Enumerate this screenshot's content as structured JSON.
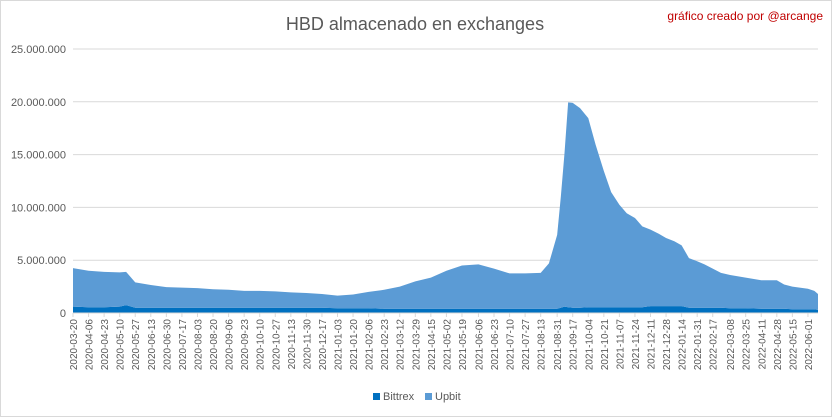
{
  "chart_data": {
    "type": "area",
    "stacked": true,
    "title": "HBD almacenado en exchanges",
    "credit": "gráfico creado por @arcange",
    "xlabel": "",
    "ylabel": "",
    "ylim": [
      0,
      25000000
    ],
    "yticks": [
      0,
      5000000,
      10000000,
      15000000,
      20000000,
      25000000
    ],
    "ytick_labels": [
      "0",
      "5.000.000",
      "10.000.000",
      "15.000.000",
      "20.000.000",
      "25.000.000"
    ],
    "grid": true,
    "legend_position": "bottom",
    "x_tick_labels": [
      "2020-03-20",
      "2020-04-06",
      "2020-04-23",
      "2020-05-10",
      "2020-05-27",
      "2020-06-13",
      "2020-06-30",
      "2020-07-17",
      "2020-08-03",
      "2020-08-20",
      "2020-09-06",
      "2020-09-23",
      "2020-10-10",
      "2020-10-27",
      "2020-11-13",
      "2020-11-30",
      "2020-12-17",
      "2021-01-03",
      "2021-01-20",
      "2021-02-06",
      "2021-02-23",
      "2021-03-12",
      "2021-03-29",
      "2021-04-15",
      "2021-05-02",
      "2021-05-19",
      "2021-06-06",
      "2021-06-23",
      "2021-07-10",
      "2021-07-27",
      "2021-08-13",
      "2021-08-31",
      "2021-09-17",
      "2021-10-04",
      "2021-10-21",
      "2021-11-07",
      "2021-11-24",
      "2021-12-11",
      "2021-12-28",
      "2022-01-14",
      "2022-01-31",
      "2022-02-17",
      "2022-03-08",
      "2022-03-25",
      "2022-04-11",
      "2022-04-28",
      "2022-05-15",
      "2022-06-01"
    ],
    "x": [
      "2020-03-20",
      "2020-04-06",
      "2020-04-23",
      "2020-05-10",
      "2020-05-17",
      "2020-05-27",
      "2020-06-13",
      "2020-06-30",
      "2020-07-17",
      "2020-08-03",
      "2020-08-20",
      "2020-09-06",
      "2020-09-23",
      "2020-10-10",
      "2020-10-27",
      "2020-11-13",
      "2020-11-30",
      "2020-12-17",
      "2021-01-03",
      "2021-01-20",
      "2021-02-06",
      "2021-02-23",
      "2021-03-12",
      "2021-03-29",
      "2021-04-15",
      "2021-05-02",
      "2021-05-19",
      "2021-06-06",
      "2021-06-23",
      "2021-07-10",
      "2021-07-27",
      "2021-08-13",
      "2021-08-22",
      "2021-08-31",
      "2021-09-04",
      "2021-09-08",
      "2021-09-12",
      "2021-09-17",
      "2021-09-25",
      "2021-10-04",
      "2021-10-12",
      "2021-10-21",
      "2021-10-29",
      "2021-11-07",
      "2021-11-15",
      "2021-11-24",
      "2021-12-02",
      "2021-12-11",
      "2021-12-20",
      "2021-12-28",
      "2022-01-06",
      "2022-01-14",
      "2022-01-22",
      "2022-01-31",
      "2022-02-08",
      "2022-02-17",
      "2022-02-26",
      "2022-03-08",
      "2022-03-25",
      "2022-04-11",
      "2022-04-28",
      "2022-05-06",
      "2022-05-15",
      "2022-06-01",
      "2022-06-08",
      "2022-06-12"
    ],
    "series": [
      {
        "name": "Bittrex",
        "color": "#0070c0",
        "values": [
          600000,
          550000,
          550000,
          600000,
          750000,
          500000,
          500000,
          500000,
          500000,
          500000,
          500000,
          500000,
          500000,
          500000,
          500000,
          500000,
          500000,
          500000,
          450000,
          450000,
          450000,
          400000,
          400000,
          400000,
          400000,
          400000,
          400000,
          400000,
          400000,
          400000,
          400000,
          400000,
          400000,
          400000,
          500000,
          600000,
          550000,
          500000,
          500000,
          550000,
          550000,
          550000,
          550000,
          550000,
          550000,
          550000,
          550000,
          650000,
          650000,
          650000,
          650000,
          650000,
          500000,
          500000,
          500000,
          500000,
          500000,
          450000,
          450000,
          400000,
          400000,
          400000,
          350000,
          350000,
          350000,
          300000
        ]
      },
      {
        "name": "Upbit",
        "color": "#5b9bd5",
        "values": [
          3650000,
          3450000,
          3350000,
          3250000,
          3150000,
          2400000,
          2150000,
          1950000,
          1900000,
          1850000,
          1750000,
          1700000,
          1600000,
          1600000,
          1550000,
          1450000,
          1400000,
          1300000,
          1200000,
          1300000,
          1550000,
          1800000,
          2100000,
          2600000,
          2950000,
          3600000,
          4100000,
          4200000,
          3800000,
          3350000,
          3350000,
          3400000,
          4300000,
          7000000,
          10500000,
          14500000,
          19400000,
          19400000,
          18900000,
          17900000,
          15400000,
          12900000,
          10900000,
          9700000,
          8900000,
          8450000,
          7650000,
          7250000,
          6850000,
          6450000,
          6150000,
          5750000,
          4700000,
          4400000,
          4100000,
          3700000,
          3300000,
          3150000,
          2900000,
          2700000,
          2700000,
          2300000,
          2150000,
          1950000,
          1750000,
          1500000
        ]
      }
    ]
  }
}
